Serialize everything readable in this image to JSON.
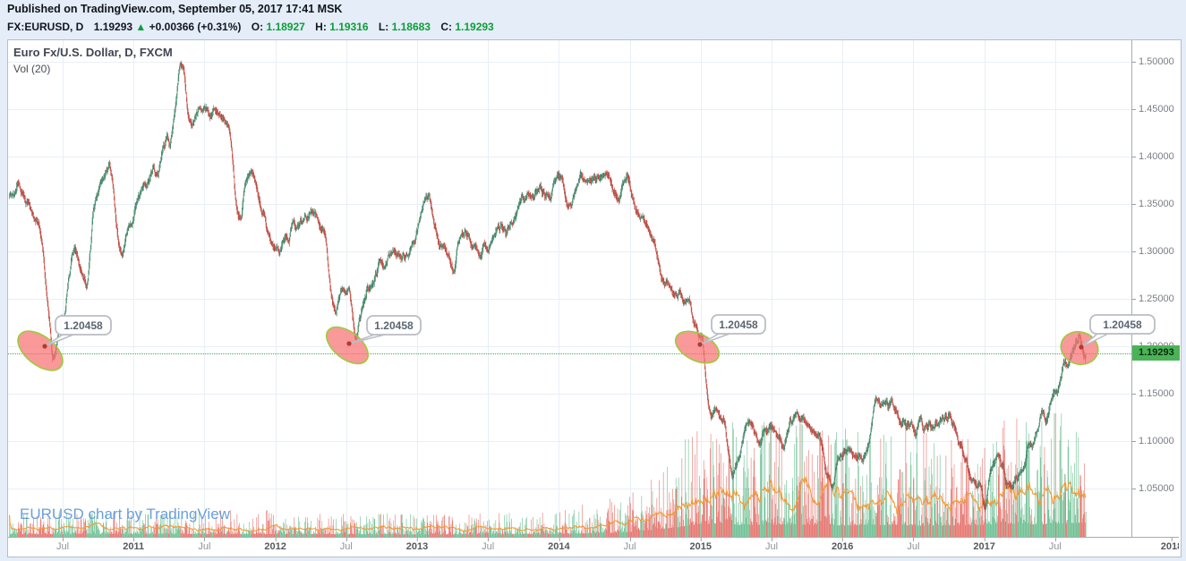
{
  "page": {
    "published_line": "Published on TradingView.com, September 05, 2017 17:41 MSK"
  },
  "symbol_bar": {
    "symbol": "FX:EURUSD, D",
    "last": "1.19293",
    "direction_icon": "▲",
    "change": "+0.00366 (+0.31%)",
    "o_label": "O:",
    "o": "1.18927",
    "h_label": "H:",
    "h": "1.19316",
    "l_label": "L:",
    "l": "1.18683",
    "c_label": "C:",
    "c": "1.19293"
  },
  "chart": {
    "legend_title": "Euro Fx/U.S. Dollar, D, FXCM",
    "legend_indicator": "Vol (20)",
    "watermark": "EURUSD chart by TradingView",
    "last_price_label": "1.19293"
  },
  "axes": {
    "price_ticks": [
      "1.50000",
      "1.45000",
      "1.40000",
      "1.35000",
      "1.30000",
      "1.25000",
      "1.20000",
      "1.15000",
      "1.10000",
      "1.05000"
    ],
    "time_ticks": [
      {
        "label": "Jul",
        "bold": false
      },
      {
        "label": "2011",
        "bold": true
      },
      {
        "label": "Jul",
        "bold": false
      },
      {
        "label": "2012",
        "bold": true
      },
      {
        "label": "Jul",
        "bold": false
      },
      {
        "label": "2013",
        "bold": true
      },
      {
        "label": "Jul",
        "bold": false
      },
      {
        "label": "2014",
        "bold": true
      },
      {
        "label": "Jul",
        "bold": false
      },
      {
        "label": "2015",
        "bold": true
      },
      {
        "label": "Jul",
        "bold": false
      },
      {
        "label": "2016",
        "bold": true
      },
      {
        "label": "Jul",
        "bold": false
      },
      {
        "label": "2017",
        "bold": true
      },
      {
        "label": "Jul",
        "bold": false
      },
      {
        "label": "2018",
        "bold": true
      }
    ]
  },
  "annotations": [
    {
      "label": "1.20458",
      "event": "2010-06 low touch"
    },
    {
      "label": "1.20458",
      "event": "2012-07 low touch"
    },
    {
      "label": "1.20458",
      "event": "2015-01 breakdown"
    },
    {
      "label": "1.20458",
      "event": "2017-08 high touch"
    }
  ],
  "colors": {
    "header_green": "#0c9e39",
    "candle_up": "#54a07d",
    "candle_up_wick": "#3c7a5e",
    "candle_down": "#d6584e",
    "candle_down_wick": "#b2443c",
    "volume_up": "rgba(96,186,138,0.9)",
    "volume_down": "rgba(226,95,88,0.85)",
    "volume_ma": "#f29b38",
    "grid": "#e8eff7",
    "last_price_bg": "#4bb357",
    "last_price_line": "#3fae52",
    "annotation_fill": "#f87171",
    "annotation_stroke": "#9ccb3c",
    "annotation_dot": "#b23b30",
    "callout_border": "#b9bdc4",
    "callout_text": "#5a6470"
  },
  "chart_data": {
    "type": "candlestick",
    "symbol": "EURUSD",
    "exchange": "FXCM",
    "interval": "D",
    "title": "Euro Fx/U.S. Dollar, D, FXCM",
    "price_axis_range": [
      0.985,
      1.525
    ],
    "visible_range": [
      "2010-02-15",
      "2017-09-05"
    ],
    "annotation_level": 1.20458,
    "start_month": "2010-02",
    "monthly_closes": [
      1.365,
      1.351,
      1.33,
      1.23,
      1.224,
      1.305,
      1.268,
      1.363,
      1.395,
      1.299,
      1.338,
      1.369,
      1.381,
      1.416,
      1.482,
      1.439,
      1.452,
      1.44,
      1.438,
      1.339,
      1.386,
      1.345,
      1.296,
      1.308,
      1.333,
      1.334,
      1.324,
      1.236,
      1.266,
      1.23,
      1.257,
      1.286,
      1.296,
      1.298,
      1.319,
      1.358,
      1.306,
      1.282,
      1.317,
      1.3,
      1.301,
      1.33,
      1.322,
      1.353,
      1.358,
      1.359,
      1.374,
      1.349,
      1.38,
      1.377,
      1.387,
      1.363,
      1.369,
      1.339,
      1.313,
      1.263,
      1.252,
      1.245,
      1.21,
      1.129,
      1.119,
      1.073,
      1.122,
      1.098,
      1.115,
      1.098,
      1.121,
      1.118,
      1.1,
      1.056,
      1.086,
      1.083,
      1.087,
      1.138,
      1.145,
      1.113,
      1.111,
      1.117,
      1.116,
      1.124,
      1.098,
      1.059,
      1.052,
      1.08,
      1.058,
      1.065,
      1.09,
      1.124,
      1.143,
      1.184,
      1.191,
      1.193
    ],
    "key_points": [
      {
        "date": "2010-06-07",
        "price": 1.1876,
        "m": 3.73,
        "amp": -0.04,
        "w": 0.3
      },
      {
        "date": "2011-05-04",
        "price": 1.494,
        "m": 14.6,
        "amp": 0.02,
        "w": 0.35
      },
      {
        "date": "2012-07-24",
        "price": 1.2042,
        "m": 29.3,
        "amp": -0.024,
        "w": 0.3
      },
      {
        "date": "2015-03-13",
        "price": 1.0462,
        "m": 61.0,
        "amp": -0.016,
        "w": 0.45
      },
      {
        "date": "2017-01-03",
        "price": 1.034,
        "m": 82.6,
        "amp": -0.022,
        "w": 0.28
      },
      {
        "date": "2017-08-29",
        "price": 1.2045,
        "m": 90.5,
        "amp": 0.012,
        "w": 0.2
      }
    ],
    "last_candle": {
      "date": "2017-09-05",
      "o": 1.18927,
      "h": 1.19316,
      "l": 1.18683,
      "c": 1.19293
    },
    "volume": {
      "ma_period": 20,
      "profile": [
        [
          0,
          13
        ],
        [
          10,
          15
        ],
        [
          22,
          14
        ],
        [
          34,
          12
        ],
        [
          46,
          13
        ],
        [
          52,
          22
        ],
        [
          56,
          45
        ],
        [
          58.5,
          62
        ],
        [
          60,
          68
        ],
        [
          62,
          60
        ],
        [
          66,
          62
        ],
        [
          70,
          58
        ],
        [
          74,
          60
        ],
        [
          78,
          56
        ],
        [
          82,
          60
        ],
        [
          84,
          66
        ],
        [
          87,
          62
        ],
        [
          89,
          68
        ],
        [
          91.2,
          72
        ]
      ]
    }
  }
}
